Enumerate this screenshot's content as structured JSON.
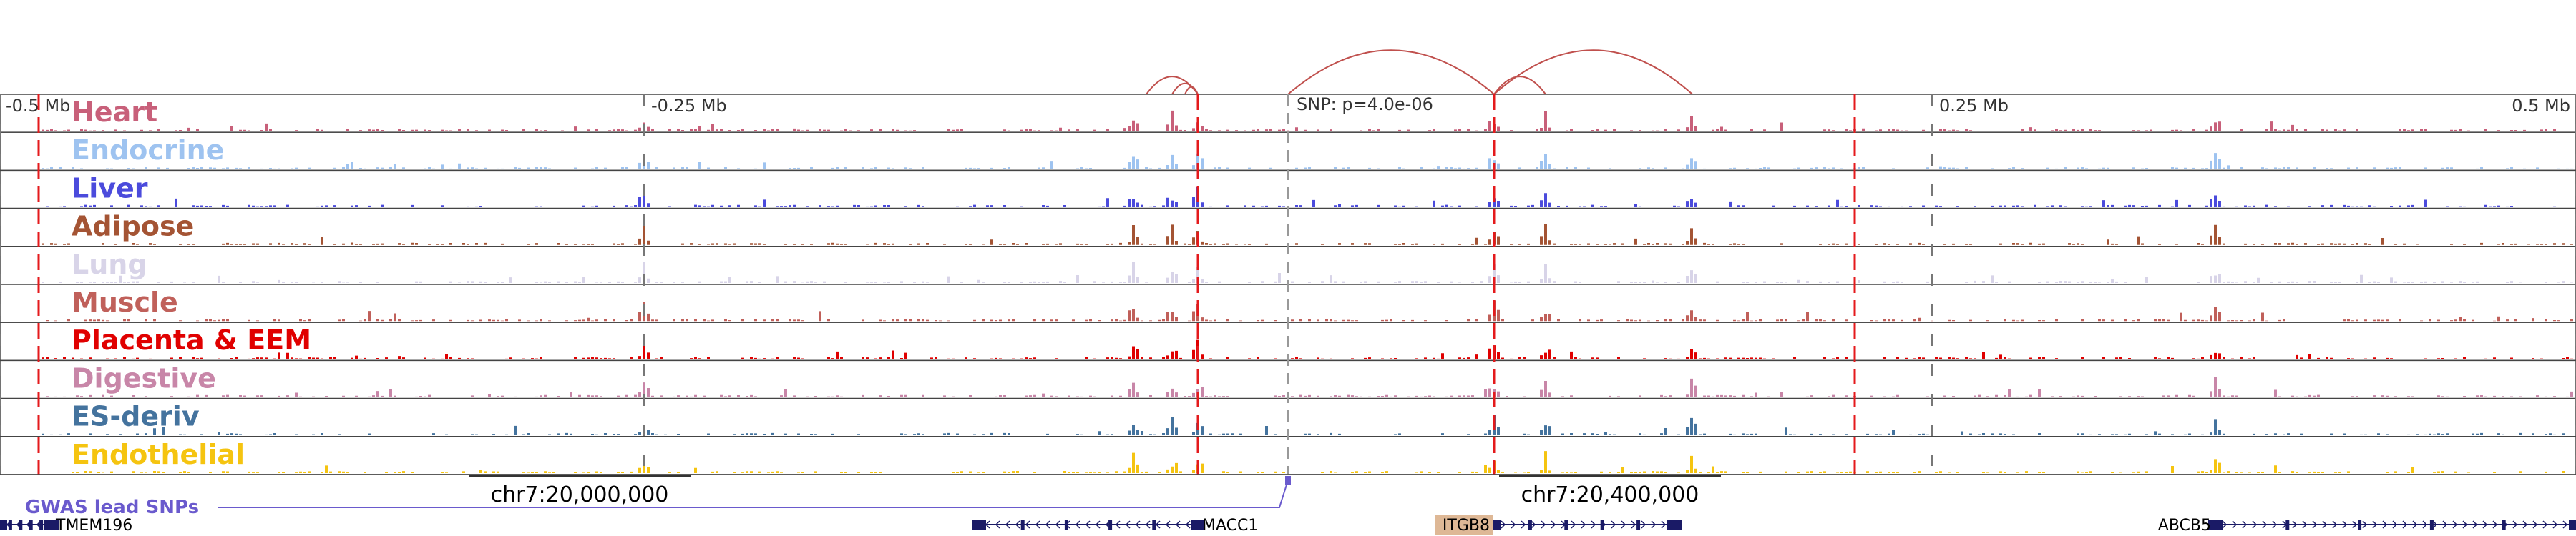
{
  "view": {
    "range_mb": [
      -0.5,
      0.5
    ],
    "ticks": [
      {
        "mb": -0.5,
        "label": "-0.5 Mb"
      },
      {
        "mb": -0.25,
        "label": "-0.25 Mb"
      },
      {
        "mb": 0.25,
        "label": "0.25 Mb"
      },
      {
        "mb": 0.5,
        "label": "0.5 Mb"
      }
    ],
    "lead_snp": {
      "mb": 0.0,
      "label": "SNP: p=4.0e-06"
    },
    "red_markers_mb": [
      -0.485,
      -0.035,
      0.08,
      0.22
    ],
    "highlight_regions_mb": [
      [
        -0.06,
        -0.055
      ],
      [
        -0.05,
        -0.045
      ],
      [
        -0.035,
        -0.03
      ],
      [
        -0.002,
        0.002
      ],
      [
        0.1,
        0.105
      ],
      [
        0.157,
        0.16
      ]
    ],
    "colors": {
      "marker": "#e41a1c",
      "highlight": "#d9d9d9",
      "arc": "#c0504d",
      "gwas": "#6a5acd",
      "gene": "#1a1a66"
    }
  },
  "tracks": [
    {
      "name": "Heart",
      "color": "#c8607a"
    },
    {
      "name": "Endocrine",
      "color": "#9ec3f0"
    },
    {
      "name": "Liver",
      "color": "#4b4bdc"
    },
    {
      "name": "Adipose",
      "color": "#a45434"
    },
    {
      "name": "Lung",
      "color": "#d8d4e8"
    },
    {
      "name": "Muscle",
      "color": "#c0605a"
    },
    {
      "name": "Placenta & EEM",
      "color": "#e00000"
    },
    {
      "name": "Digestive",
      "color": "#c886a8"
    },
    {
      "name": "ES-deriv",
      "color": "#44739e"
    },
    {
      "name": "Endothelial",
      "color": "#f5c410"
    }
  ],
  "arcs_mb": [
    [
      -0.055,
      -0.035
    ],
    [
      -0.045,
      -0.035
    ],
    [
      -0.04,
      -0.035
    ],
    [
      0.0,
      0.08
    ],
    [
      0.08,
      0.1
    ],
    [
      0.08,
      0.157
    ]
  ],
  "gwas": {
    "label": "GWAS lead SNPs",
    "snp_mb": 0.0
  },
  "coordinates": [
    {
      "label": "chr7:20,000,000",
      "mb": -0.275
    },
    {
      "label": "chr7:20,400,000",
      "mb": 0.125
    }
  ],
  "genes": [
    {
      "name": "TMEM196",
      "start_mb": -0.5,
      "end_mb": -0.48,
      "strand": "-",
      "label_side": "right",
      "highlight": false
    },
    {
      "name": "MACC1",
      "start_mb": -0.12,
      "end_mb": -0.035,
      "strand": "-",
      "label_side": "right",
      "highlight": false
    },
    {
      "name": "ITGB8",
      "start_mb": 0.08,
      "end_mb": 0.15,
      "strand": "+",
      "label_side": "left",
      "highlight": true,
      "highlight_color": "#deb896"
    },
    {
      "name": "ABCB5",
      "start_mb": 0.36,
      "end_mb": 0.5,
      "strand": "+",
      "label_side": "left",
      "highlight": false
    }
  ]
}
